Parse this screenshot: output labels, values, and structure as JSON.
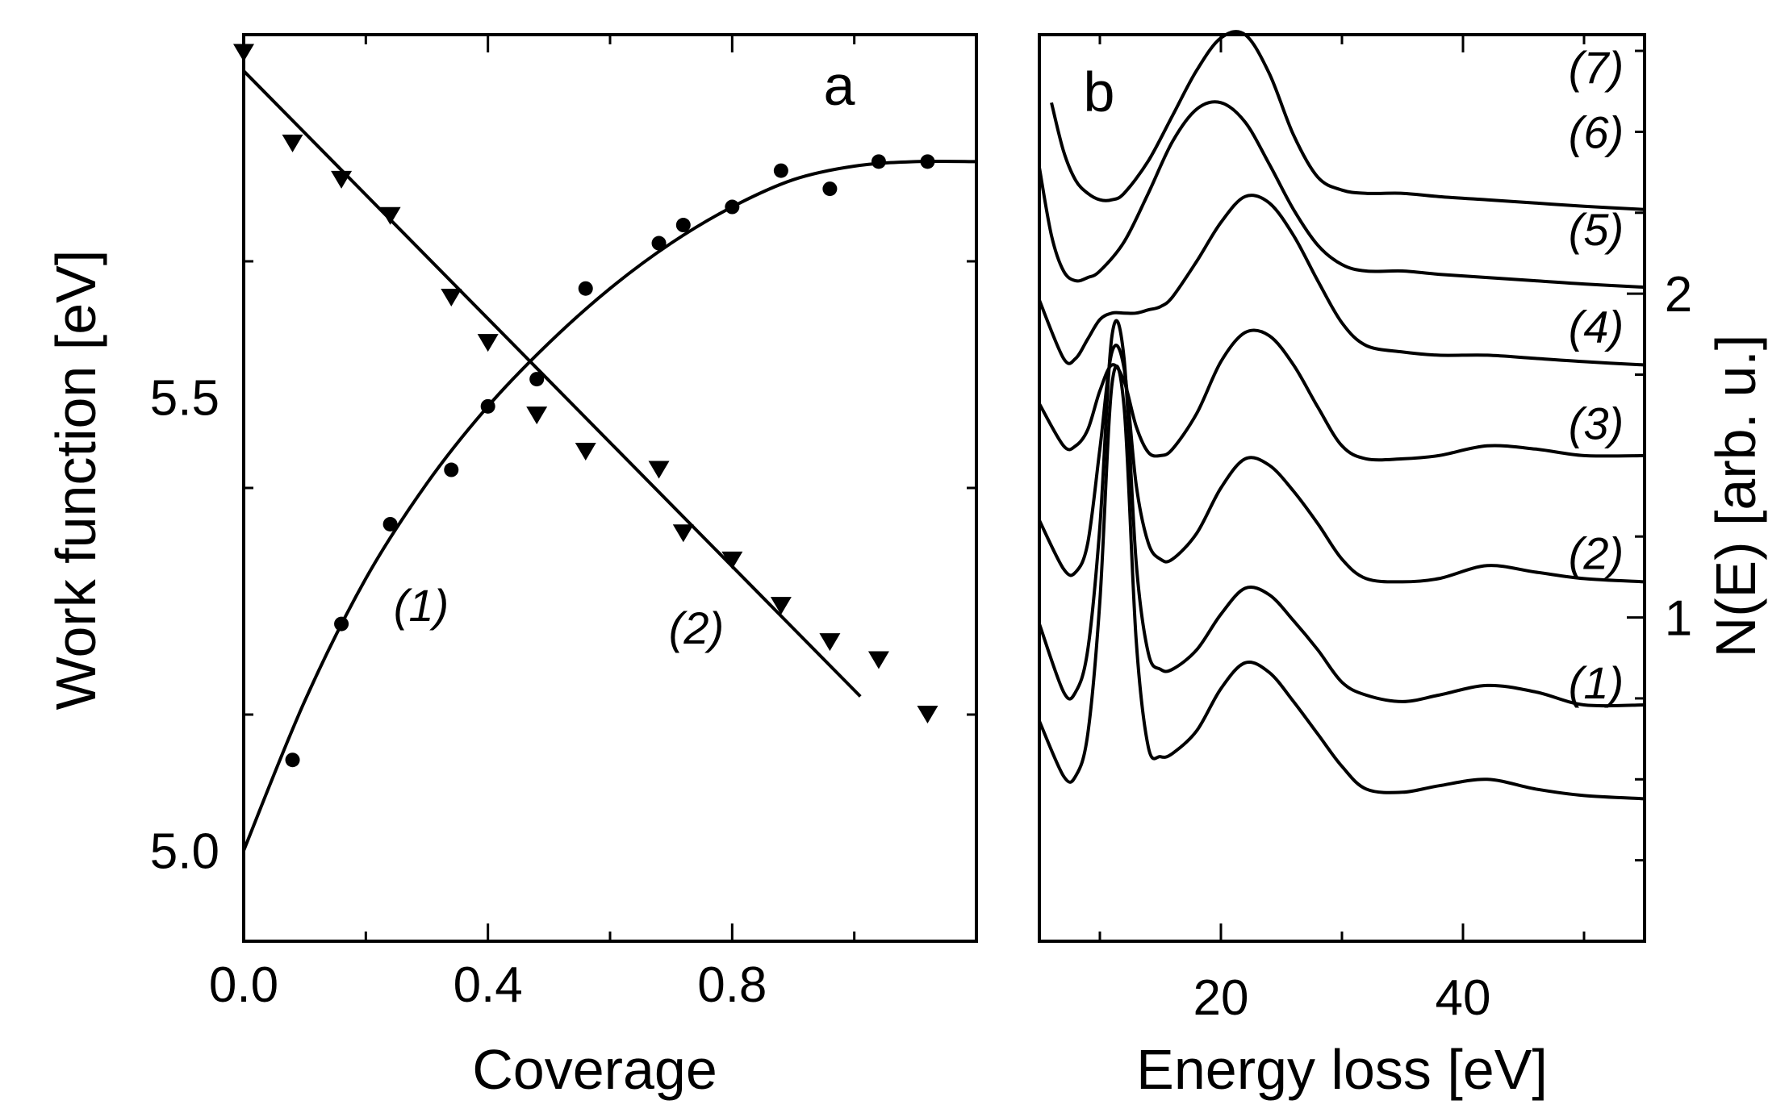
{
  "chart_data": [
    {
      "type": "scatter",
      "panel": "a",
      "xlabel": "Coverage",
      "ylabel": "Work function [eV]",
      "xlim": [
        0.0,
        1.2
      ],
      "ylim": [
        4.9,
        5.9
      ],
      "xticks": [
        0.0,
        0.4,
        0.8
      ],
      "xtick_labels": [
        "0.0",
        "0.4",
        "0.8"
      ],
      "yticks": [
        5.0,
        5.5
      ],
      "ytick_labels": [
        "5.0",
        "5.5"
      ],
      "series": [
        {
          "name": "(1)",
          "marker": "circle",
          "points": [
            [
              0.08,
              5.1
            ],
            [
              0.16,
              5.25
            ],
            [
              0.24,
              5.36
            ],
            [
              0.34,
              5.42
            ],
            [
              0.4,
              5.49
            ],
            [
              0.48,
              5.52
            ],
            [
              0.56,
              5.62
            ],
            [
              0.68,
              5.67
            ],
            [
              0.72,
              5.69
            ],
            [
              0.8,
              5.71
            ],
            [
              0.88,
              5.75
            ],
            [
              0.96,
              5.73
            ],
            [
              1.04,
              5.76
            ],
            [
              1.12,
              5.76
            ]
          ],
          "fit": [
            [
              0.0,
              5.0
            ],
            [
              0.1,
              5.165
            ],
            [
              0.2,
              5.3
            ],
            [
              0.3,
              5.405
            ],
            [
              0.4,
              5.49
            ],
            [
              0.5,
              5.56
            ],
            [
              0.6,
              5.62
            ],
            [
              0.7,
              5.67
            ],
            [
              0.8,
              5.71
            ],
            [
              0.9,
              5.74
            ],
            [
              1.0,
              5.755
            ],
            [
              1.1,
              5.76
            ],
            [
              1.2,
              5.76
            ]
          ]
        },
        {
          "name": "(2)",
          "marker": "triangle-down",
          "points": [
            [
              0.0,
              5.88
            ],
            [
              0.08,
              5.78
            ],
            [
              0.16,
              5.74
            ],
            [
              0.24,
              5.7
            ],
            [
              0.34,
              5.61
            ],
            [
              0.4,
              5.56
            ],
            [
              0.48,
              5.48
            ],
            [
              0.56,
              5.44
            ],
            [
              0.68,
              5.42
            ],
            [
              0.72,
              5.35
            ],
            [
              0.8,
              5.32
            ],
            [
              0.88,
              5.27
            ],
            [
              0.96,
              5.23
            ],
            [
              1.04,
              5.21
            ],
            [
              1.12,
              5.15
            ]
          ],
          "fit": [
            [
              0.0,
              5.86
            ],
            [
              1.01,
              5.17
            ]
          ]
        }
      ],
      "annotations": [
        "a",
        "(1)",
        "(2)"
      ]
    },
    {
      "type": "line",
      "panel": "b",
      "xlabel": "Energy loss [eV]",
      "ylabel": "N(E) [arb. u.]",
      "xlim": [
        5,
        55
      ],
      "ylim": [
        0,
        2.8
      ],
      "xticks": [
        20,
        40
      ],
      "xtick_labels": [
        "20",
        "40"
      ],
      "yticks_right": [
        1,
        2
      ],
      "ytick_labels_right": [
        "1",
        "2"
      ],
      "series": [
        {
          "name": "(1)",
          "baseline": 0.8,
          "x": [
            5,
            7,
            8,
            9,
            10,
            11,
            12,
            13,
            14,
            15,
            16,
            18,
            20,
            22,
            24,
            26,
            28,
            30,
            32,
            35,
            38,
            42,
            46,
            50,
            55
          ],
          "y": [
            0.68,
            0.51,
            0.51,
            0.64,
            1.05,
            1.72,
            1.65,
            0.93,
            0.6,
            0.57,
            0.58,
            0.65,
            0.78,
            0.86,
            0.83,
            0.74,
            0.64,
            0.54,
            0.47,
            0.46,
            0.48,
            0.5,
            0.47,
            0.45,
            0.44
          ]
        },
        {
          "name": "(2)",
          "baseline": 1.2,
          "x": [
            5,
            7,
            8,
            9,
            10,
            11,
            12,
            13,
            14,
            15,
            16,
            18,
            20,
            22,
            24,
            26,
            28,
            30,
            32,
            35,
            38,
            42,
            46,
            50,
            55
          ],
          "y": [
            0.98,
            0.77,
            0.77,
            0.9,
            1.28,
            1.87,
            1.8,
            1.17,
            0.89,
            0.84,
            0.84,
            0.9,
            1.01,
            1.09,
            1.07,
            0.99,
            0.9,
            0.8,
            0.76,
            0.74,
            0.76,
            0.79,
            0.77,
            0.73,
            0.73
          ]
        },
        {
          "name": "(3)",
          "baseline": 1.6,
          "x": [
            5,
            7,
            8,
            9,
            10,
            11,
            12,
            13,
            14,
            15,
            16,
            18,
            20,
            22,
            24,
            26,
            28,
            30,
            32,
            35,
            38,
            42,
            46,
            50,
            55
          ],
          "y": [
            1.3,
            1.15,
            1.14,
            1.23,
            1.52,
            1.82,
            1.77,
            1.41,
            1.23,
            1.18,
            1.18,
            1.26,
            1.4,
            1.49,
            1.47,
            1.39,
            1.29,
            1.18,
            1.12,
            1.11,
            1.12,
            1.16,
            1.14,
            1.12,
            1.11
          ]
        },
        {
          "name": "(4)",
          "baseline": 1.9,
          "x": [
            5,
            7,
            8,
            9,
            10,
            11,
            12,
            13,
            14,
            15,
            16,
            18,
            20,
            22,
            24,
            26,
            28,
            30,
            32,
            35,
            38,
            42,
            46,
            50,
            55
          ],
          "y": [
            1.66,
            1.53,
            1.53,
            1.58,
            1.7,
            1.78,
            1.73,
            1.59,
            1.51,
            1.5,
            1.52,
            1.63,
            1.79,
            1.88,
            1.87,
            1.78,
            1.65,
            1.53,
            1.49,
            1.49,
            1.5,
            1.53,
            1.52,
            1.5,
            1.5
          ]
        },
        {
          "name": "(5)",
          "baseline": 2.2,
          "x": [
            5,
            7,
            8,
            9,
            10,
            11,
            12,
            13,
            14,
            15,
            16,
            18,
            20,
            22,
            24,
            26,
            28,
            30,
            32,
            35,
            38,
            42,
            46,
            50,
            55
          ],
          "y": [
            1.98,
            1.8,
            1.8,
            1.86,
            1.92,
            1.94,
            1.94,
            1.94,
            1.95,
            1.96,
            1.99,
            2.1,
            2.22,
            2.3,
            2.28,
            2.18,
            2.04,
            1.91,
            1.84,
            1.82,
            1.81,
            1.81,
            1.8,
            1.79,
            1.78
          ]
        },
        {
          "name": "(6)",
          "baseline": 2.5,
          "x": [
            5,
            6,
            7,
            8,
            9,
            10,
            12,
            14,
            16,
            18,
            20,
            22,
            24,
            26,
            28,
            30,
            32,
            35,
            38,
            42,
            46,
            50,
            55
          ],
          "y": [
            2.39,
            2.18,
            2.07,
            2.04,
            2.05,
            2.07,
            2.16,
            2.31,
            2.47,
            2.57,
            2.59,
            2.53,
            2.4,
            2.26,
            2.15,
            2.09,
            2.07,
            2.07,
            2.06,
            2.05,
            2.04,
            2.03,
            2.02
          ]
        },
        {
          "name": "(7)",
          "baseline": 2.7,
          "x": [
            6,
            7,
            8,
            9,
            10,
            11,
            12,
            14,
            16,
            18,
            20,
            22,
            24,
            26,
            28,
            30,
            32,
            35,
            38,
            42,
            46,
            50,
            55
          ],
          "y": [
            2.59,
            2.44,
            2.35,
            2.31,
            2.29,
            2.29,
            2.31,
            2.41,
            2.55,
            2.69,
            2.79,
            2.8,
            2.68,
            2.49,
            2.36,
            2.32,
            2.31,
            2.31,
            2.3,
            2.29,
            2.28,
            2.27,
            2.26
          ]
        }
      ],
      "annotations": [
        "b"
      ]
    }
  ]
}
